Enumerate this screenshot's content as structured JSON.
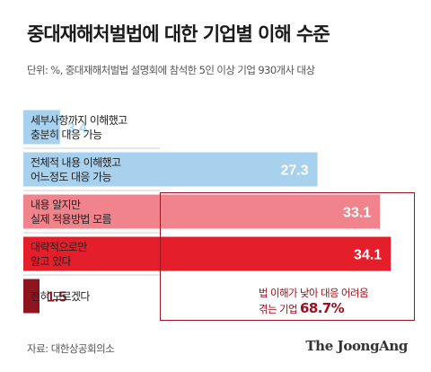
{
  "title": "중대재해처벌법에 대한 기업별 이해 수준",
  "subtitle": "단위: %, 중대재해처벌법 설명회에 참석한 5인 이상 기업 930개사 대상",
  "chart_data": {
    "type": "bar",
    "orientation": "horizontal",
    "categories": [
      "세부사항까지 이해했고\n충분히 대응 가능",
      "전체적 내용 이해했고\n어느정도 대응 가능",
      "내용 알지만\n실제 적용방법 모름",
      "대략적으로만\n알고 있다",
      "전혀 모르겠다"
    ],
    "values": [
      3.4,
      27.3,
      33.1,
      34.1,
      1.5
    ],
    "value_labels": [
      "3.4",
      "27.3",
      "33.1",
      "34.1",
      "1.5"
    ],
    "colors": [
      "#a8d1ee",
      "#a8d1ee",
      "#f1838c",
      "#e41f2b",
      "#8e1420"
    ],
    "value_label_colors": [
      "#a8d1ee",
      "#ffffff",
      "#ffffff",
      "#ffffff",
      "#8e1420"
    ],
    "xlim": [
      0,
      35
    ],
    "grid": false,
    "annotation": {
      "line1": "법 이해가 낮아 대응 어려움",
      "line2_prefix": "겪는 기업 ",
      "line2_value": "68.7%"
    }
  },
  "source": "자료: 대한상공회의소",
  "brand": "The JoongAng"
}
